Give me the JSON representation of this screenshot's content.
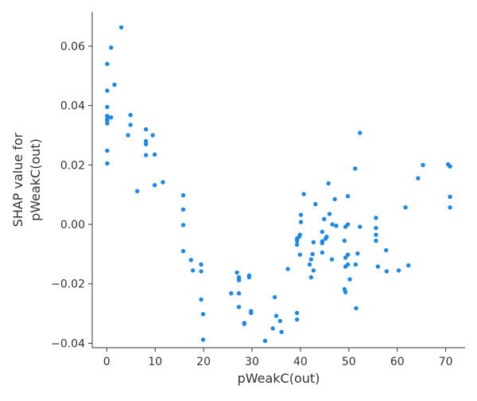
{
  "chart_data": {
    "type": "scatter",
    "title": "",
    "xlabel": "pWeakC(out)",
    "ylabel_lines": [
      "SHAP value for",
      "pWeakC(out)"
    ],
    "xlim": [
      -3,
      74
    ],
    "ylim": [
      -0.0415,
      0.0715
    ],
    "xticks": [
      0,
      10,
      20,
      30,
      40,
      50,
      60,
      70
    ],
    "yticks": [
      -0.04,
      -0.02,
      0.0,
      0.02,
      0.04,
      0.06
    ],
    "ytick_labels": [
      "−0.04",
      "−0.02",
      "0.00",
      "0.02",
      "0.04",
      "0.06"
    ],
    "grid": false,
    "colors": {
      "point": "#1e88e5",
      "axis": "#333333"
    },
    "points": [
      [
        0.1,
        0.054
      ],
      [
        0.1,
        0.045
      ],
      [
        0.1,
        0.0395
      ],
      [
        0.1,
        0.0365
      ],
      [
        0.1,
        0.0355
      ],
      [
        0.1,
        0.035
      ],
      [
        0.1,
        0.034
      ],
      [
        0.1,
        0.0248
      ],
      [
        0.1,
        0.0205
      ],
      [
        0.9,
        0.0595
      ],
      [
        0.9,
        0.036
      ],
      [
        1.6,
        0.047
      ],
      [
        3.0,
        0.0663
      ],
      [
        4.4,
        0.03
      ],
      [
        4.9,
        0.0368
      ],
      [
        4.9,
        0.0335
      ],
      [
        6.3,
        0.0112
      ],
      [
        8.1,
        0.032
      ],
      [
        8.1,
        0.028
      ],
      [
        8.1,
        0.027
      ],
      [
        8.1,
        0.0233
      ],
      [
        9.5,
        0.03
      ],
      [
        9.9,
        0.0235
      ],
      [
        9.9,
        0.0132
      ],
      [
        11.6,
        0.0142
      ],
      [
        15.8,
        0.0098
      ],
      [
        15.8,
        0.005
      ],
      [
        15.8,
        -0.0002
      ],
      [
        15.8,
        -0.009
      ],
      [
        17.4,
        -0.012
      ],
      [
        17.8,
        -0.0155
      ],
      [
        19.5,
        -0.0135
      ],
      [
        19.5,
        -0.0158
      ],
      [
        19.5,
        -0.0253
      ],
      [
        19.9,
        -0.0302
      ],
      [
        19.9,
        -0.0388
      ],
      [
        25.7,
        -0.0232
      ],
      [
        26.9,
        -0.0162
      ],
      [
        27.3,
        -0.0178
      ],
      [
        27.3,
        -0.0182
      ],
      [
        27.3,
        -0.0188
      ],
      [
        27.3,
        -0.0232
      ],
      [
        27.3,
        -0.0278
      ],
      [
        28.4,
        -0.0332
      ],
      [
        28.4,
        -0.0335
      ],
      [
        29.4,
        -0.0172
      ],
      [
        29.4,
        -0.0178
      ],
      [
        29.8,
        -0.0292
      ],
      [
        29.8,
        -0.0298
      ],
      [
        32.7,
        -0.0392
      ],
      [
        34.3,
        -0.035
      ],
      [
        34.7,
        -0.0245
      ],
      [
        35.0,
        -0.0308
      ],
      [
        35.8,
        -0.0325
      ],
      [
        36.1,
        -0.0362
      ],
      [
        37.4,
        -0.015
      ],
      [
        39.3,
        -0.0048
      ],
      [
        39.3,
        -0.0055
      ],
      [
        39.3,
        -0.0068
      ],
      [
        39.3,
        -0.0298
      ],
      [
        39.3,
        -0.032
      ],
      [
        39.7,
        -0.0042
      ],
      [
        39.9,
        -0.0035
      ],
      [
        39.9,
        -0.0102
      ],
      [
        40.1,
        0.0008
      ],
      [
        40.1,
        0.0032
      ],
      [
        40.7,
        0.0102
      ],
      [
        41.9,
        -0.0135
      ],
      [
        42.2,
        -0.0118
      ],
      [
        42.2,
        -0.0178
      ],
      [
        42.5,
        -0.01
      ],
      [
        42.7,
        -0.006
      ],
      [
        42.7,
        -0.0155
      ],
      [
        43.1,
        0.0068
      ],
      [
        44.5,
        -0.0025
      ],
      [
        44.5,
        -0.0057
      ],
      [
        44.5,
        -0.0063
      ],
      [
        44.5,
        -0.0095
      ],
      [
        44.9,
        0.0018
      ],
      [
        45.2,
        -0.0048
      ],
      [
        45.4,
        -0.0042
      ],
      [
        45.8,
        0.0138
      ],
      [
        46.0,
        0.0035
      ],
      [
        46.5,
        -0.0118
      ],
      [
        46.6,
        0.0
      ],
      [
        47.1,
        0.0085
      ],
      [
        47.4,
        -0.0005
      ],
      [
        49.1,
        -0.0055
      ],
      [
        49.1,
        -0.0218
      ],
      [
        49.3,
        -0.0228
      ],
      [
        49.3,
        -0.0142
      ],
      [
        49.3,
        -0.0112
      ],
      [
        49.3,
        -0.0008
      ],
      [
        49.8,
        -0.0135
      ],
      [
        49.8,
        -0.0102
      ],
      [
        49.8,
        0.0
      ],
      [
        49.8,
        0.0095
      ],
      [
        50.2,
        -0.0185
      ],
      [
        51.3,
        0.0188
      ],
      [
        51.4,
        -0.0135
      ],
      [
        51.5,
        -0.0282
      ],
      [
        51.8,
        -0.0098
      ],
      [
        52.3,
        0.0308
      ],
      [
        52.3,
        -0.0008
      ],
      [
        55.6,
        0.0022
      ],
      [
        55.6,
        -0.0012
      ],
      [
        55.6,
        -0.0035
      ],
      [
        55.6,
        -0.0055
      ],
      [
        56.0,
        -0.0142
      ],
      [
        57.7,
        -0.0087
      ],
      [
        57.8,
        -0.0158
      ],
      [
        60.3,
        -0.0155
      ],
      [
        61.7,
        0.0057
      ],
      [
        62.3,
        -0.0138
      ],
      [
        64.3,
        0.0155
      ],
      [
        65.3,
        0.02
      ],
      [
        70.5,
        0.0202
      ],
      [
        70.9,
        0.0195
      ],
      [
        70.9,
        0.0093
      ],
      [
        70.9,
        0.0057
      ]
    ]
  }
}
